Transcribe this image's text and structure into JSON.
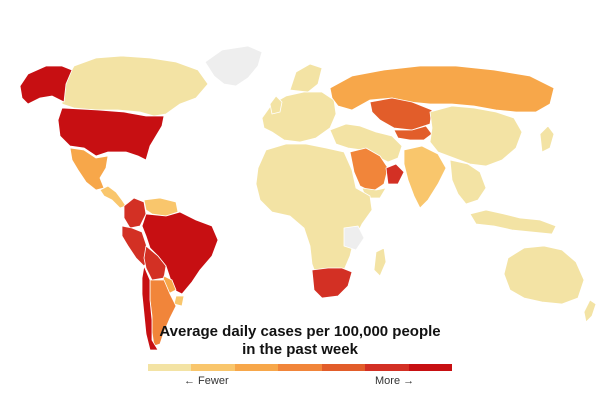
{
  "legend": {
    "title_line_1": "Average daily cases per 100,000 people",
    "title_line_2": "in the past week",
    "fewer_label": "← Fewer",
    "more_label": "More →",
    "scale_colors": [
      "#f3e3a4",
      "#f9c66c",
      "#f7a74a",
      "#f1853a",
      "#e25d2a",
      "#d33024",
      "#c70f12"
    ]
  },
  "colors": {
    "no_data": "#eeeeee",
    "border": "#ffffff"
  },
  "regions": [
    {
      "name": "alaska",
      "level": 7
    },
    {
      "name": "canada",
      "level": 1
    },
    {
      "name": "greenland",
      "level": 0
    },
    {
      "name": "united-states",
      "level": 7
    },
    {
      "name": "mexico",
      "level": 3
    },
    {
      "name": "central-america",
      "level": 2
    },
    {
      "name": "colombia",
      "level": 6
    },
    {
      "name": "venezuela",
      "level": 2
    },
    {
      "name": "peru",
      "level": 6
    },
    {
      "name": "brazil",
      "level": 7
    },
    {
      "name": "bolivia",
      "level": 6
    },
    {
      "name": "chile",
      "level": 7
    },
    {
      "name": "argentina",
      "level": 4
    },
    {
      "name": "paraguay",
      "level": 3
    },
    {
      "name": "uruguay",
      "level": 2
    },
    {
      "name": "europe",
      "level": 1
    },
    {
      "name": "russia",
      "level": 3
    },
    {
      "name": "kazakhstan",
      "level": 5
    },
    {
      "name": "middle-east",
      "level": 1
    },
    {
      "name": "saudi-arabia",
      "level": 4
    },
    {
      "name": "oman",
      "level": 6
    },
    {
      "name": "africa",
      "level": 1
    },
    {
      "name": "south-africa",
      "level": 6
    },
    {
      "name": "india",
      "level": 2
    },
    {
      "name": "china",
      "level": 1
    },
    {
      "name": "southeast-asia",
      "level": 1
    },
    {
      "name": "australia",
      "level": 1
    }
  ]
}
